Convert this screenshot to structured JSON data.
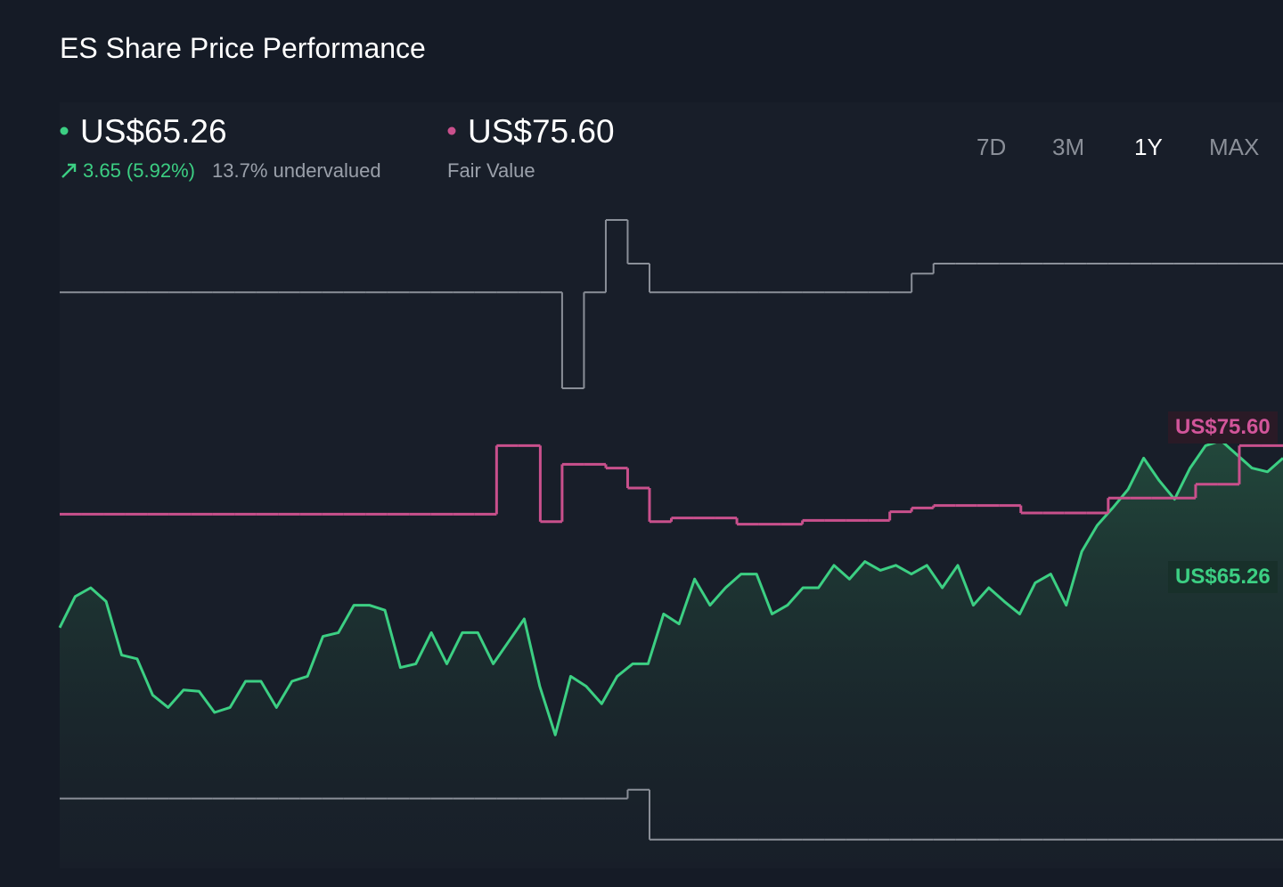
{
  "title": "ES Share Price Performance",
  "price": "US$65.26",
  "change": "3.65 (5.92%)",
  "valuation": "13.7% undervalued",
  "fair_value": "US$75.60",
  "fair_value_label": "Fair Value",
  "ranges": [
    "7D",
    "3M",
    "1Y",
    "MAX"
  ],
  "active_range": "1Y",
  "chart_data": {
    "type": "line",
    "ylim": [
      38,
      90
    ],
    "series": [
      {
        "color": "#3ccf83",
        "values": [
          56.8,
          59.3,
          60.0,
          58.9,
          54.6,
          54.3,
          51.4,
          50.4,
          51.8,
          51.7,
          50.0,
          50.4,
          52.5,
          52.5,
          50.4,
          52.5,
          52.9,
          56.1,
          56.4,
          58.6,
          58.6,
          58.2,
          53.6,
          53.9,
          56.4,
          53.9,
          56.4,
          56.4,
          53.9,
          55.7,
          57.5,
          52.1,
          48.2,
          52.9,
          52.1,
          50.7,
          52.9,
          53.9,
          53.9,
          57.9,
          57.1,
          60.7,
          58.6,
          60.0,
          61.1,
          61.1,
          57.9,
          58.6,
          60.0,
          60.0,
          61.8,
          60.7,
          62.1,
          61.4,
          61.8,
          61.1,
          61.8,
          60.0,
          61.8,
          58.6,
          60.0,
          58.9,
          57.9,
          60.4,
          61.1,
          58.6,
          62.9,
          65.0,
          66.4,
          67.9,
          70.4,
          68.6,
          67.1,
          69.6,
          71.4,
          71.8,
          70.7,
          69.6,
          69.3,
          70.4
        ]
      },
      {
        "name": "Fair Value",
        "color": "#c9508c",
        "values": [
          65.9,
          65.9,
          65.9,
          65.9,
          65.9,
          65.9,
          65.9,
          65.9,
          65.9,
          65.9,
          65.9,
          65.9,
          65.9,
          65.9,
          65.9,
          65.9,
          65.9,
          65.9,
          65.9,
          65.9,
          71.4,
          71.4,
          65.3,
          69.9,
          69.9,
          69.6,
          68.0,
          65.3,
          65.6,
          65.6,
          65.6,
          65.1,
          65.1,
          65.1,
          65.4,
          65.4,
          65.4,
          65.4,
          66.1,
          66.4,
          66.6,
          66.6,
          66.6,
          66.6,
          66.0,
          66.0,
          66.0,
          66.0,
          67.2,
          67.2,
          67.2,
          67.2,
          68.3,
          68.3,
          71.4,
          71.4
        ]
      },
      {
        "color": "#8a8f98",
        "values": [
          83.7,
          83.7,
          83.7,
          83.7,
          83.7,
          83.7,
          83.7,
          83.7,
          83.7,
          83.7,
          83.7,
          83.7,
          83.7,
          83.7,
          83.7,
          83.7,
          83.7,
          83.7,
          83.7,
          83.7,
          83.7,
          83.7,
          83.7,
          76.0,
          83.7,
          89.5,
          86.0,
          83.7,
          83.7,
          83.7,
          83.7,
          83.7,
          83.7,
          83.7,
          83.7,
          83.7,
          83.7,
          83.7,
          83.7,
          85.2,
          86.0,
          86.0,
          86.0,
          86.0,
          86.0,
          86.0,
          86.0,
          86.0,
          86.0,
          86.0,
          86.0,
          86.0,
          86.0,
          86.0,
          86.0,
          86.0
        ]
      },
      {
        "color": "#8a8f98",
        "values": [
          43.1,
          43.1,
          43.1,
          43.1,
          43.1,
          43.1,
          43.1,
          43.1,
          43.1,
          43.1,
          43.1,
          43.1,
          43.1,
          43.1,
          43.1,
          43.1,
          43.1,
          43.1,
          43.1,
          43.1,
          43.1,
          43.1,
          43.1,
          43.1,
          43.1,
          43.1,
          43.8,
          39.8,
          39.8,
          39.8,
          39.8,
          39.8,
          39.8,
          39.8,
          39.8,
          39.8,
          39.8,
          39.8,
          39.8,
          39.8,
          39.8,
          39.8,
          39.8,
          39.8,
          39.8,
          39.8,
          39.8,
          39.8,
          39.8,
          39.8,
          39.8,
          39.8,
          39.8,
          39.8,
          39.8,
          39.8
        ]
      }
    ]
  }
}
